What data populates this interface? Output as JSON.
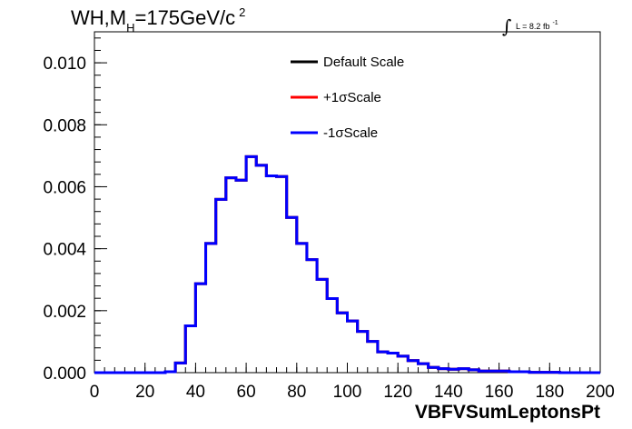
{
  "title": {
    "main": "WH,M",
    "subscript": "H",
    "rest": "=175GeV/c",
    "superscript": "2"
  },
  "luminosity": {
    "integral_symbol": "∫",
    "label": "L = 8.2 fb",
    "superscript": "-1"
  },
  "legend": {
    "items": [
      {
        "label": "Default Scale",
        "color": "#000000"
      },
      {
        "label": "+1σScale",
        "color": "#ff0000"
      },
      {
        "label": "-1σScale",
        "color": "#0000ff"
      }
    ]
  },
  "chart_data": {
    "type": "line",
    "xlabel": "VBFVSumLeptonsPt",
    "ylabel": "",
    "xlim": [
      0,
      200
    ],
    "ylim": [
      0,
      0.011
    ],
    "x_ticks": [
      "0",
      "20",
      "40",
      "60",
      "80",
      "100",
      "120",
      "140",
      "160",
      "180",
      "200"
    ],
    "y_ticks": [
      "0.000",
      "0.002",
      "0.004",
      "0.006",
      "0.008",
      "0.010"
    ],
    "bin_width": 4,
    "x_bin_edges_start": 0,
    "series": [
      {
        "name": "Default Scale",
        "color": "#000000",
        "values": [
          0,
          0,
          0,
          0,
          0,
          0,
          0,
          3e-05,
          0.00031,
          0.00151,
          0.00287,
          0.00417,
          0.00559,
          0.00629,
          0.00621,
          0.00697,
          0.00669,
          0.00635,
          0.00633,
          0.00501,
          0.00417,
          0.00365,
          0.00301,
          0.00239,
          0.00193,
          0.00167,
          0.00133,
          0.00101,
          0.00067,
          0.00063,
          0.00053,
          0.00039,
          0.00029,
          0.00017,
          0.00013,
          0.00011,
          0.00013,
          9e-05,
          5e-05,
          5e-05,
          5e-05,
          3e-05,
          3e-05,
          1e-05,
          1e-05,
          1e-05,
          0,
          0,
          0,
          0
        ]
      },
      {
        "name": "+1σScale",
        "color": "#ff0000",
        "values": [
          0,
          0,
          0,
          0,
          0,
          0,
          0,
          3e-05,
          0.00031,
          0.00151,
          0.00287,
          0.00417,
          0.00559,
          0.00629,
          0.00621,
          0.00697,
          0.00669,
          0.00635,
          0.00633,
          0.00501,
          0.00417,
          0.00365,
          0.00301,
          0.00239,
          0.00193,
          0.00167,
          0.00133,
          0.00101,
          0.00067,
          0.00063,
          0.00053,
          0.00039,
          0.00029,
          0.00017,
          0.00013,
          0.00011,
          0.00013,
          9e-05,
          5e-05,
          5e-05,
          5e-05,
          3e-05,
          3e-05,
          1e-05,
          1e-05,
          1e-05,
          0,
          0,
          0,
          0
        ]
      },
      {
        "name": "-1σScale",
        "color": "#0000ff",
        "values": [
          0,
          0,
          0,
          0,
          0,
          0,
          0,
          3e-05,
          0.00031,
          0.00151,
          0.00287,
          0.00417,
          0.00559,
          0.00629,
          0.00621,
          0.00697,
          0.00669,
          0.00635,
          0.00633,
          0.00501,
          0.00417,
          0.00365,
          0.00301,
          0.00239,
          0.00193,
          0.00167,
          0.00133,
          0.00101,
          0.00067,
          0.00063,
          0.00053,
          0.00039,
          0.00029,
          0.00017,
          0.00013,
          0.00011,
          0.00013,
          9e-05,
          5e-05,
          5e-05,
          5e-05,
          3e-05,
          3e-05,
          1e-05,
          1e-05,
          1e-05,
          0,
          0,
          0,
          0
        ]
      }
    ]
  }
}
